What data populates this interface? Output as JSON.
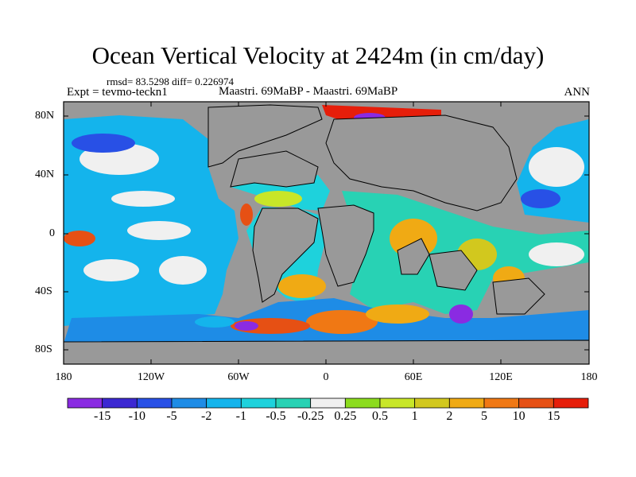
{
  "title": "Ocean Vertical Velocity at 2424m (in cm/day)",
  "stats": "rmsd= 83.5298 diff= 0.226974",
  "expt": "Expt = tevmo-teckn1",
  "case": "Maastri.  69MaBP - Maastri.  69MaBP",
  "season": "ANN",
  "lat_labels": [
    "80N",
    "40N",
    "0",
    "40S",
    "80S"
  ],
  "lon_labels": [
    "180",
    "120W",
    "60W",
    "0",
    "60E",
    "120E",
    "180"
  ],
  "colorbar": {
    "labels": [
      "-15",
      "-10",
      "-5",
      "-2",
      "-1",
      "-0.5",
      "-0.25",
      "0.25",
      "0.5",
      "1",
      "2",
      "5",
      "10",
      "15"
    ],
    "colors": [
      "#8a2be2",
      "#3c28d2",
      "#2850e6",
      "#1e8ce6",
      "#14b4ec",
      "#1ed2dc",
      "#28d2b4",
      "#f0f0f0",
      "#8cdc1e",
      "#c8e628",
      "#d2c81e",
      "#f0aa14",
      "#f07814",
      "#e65014",
      "#e61e0a"
    ]
  },
  "colors": {
    "land": "#999999",
    "frame": "#000000"
  }
}
